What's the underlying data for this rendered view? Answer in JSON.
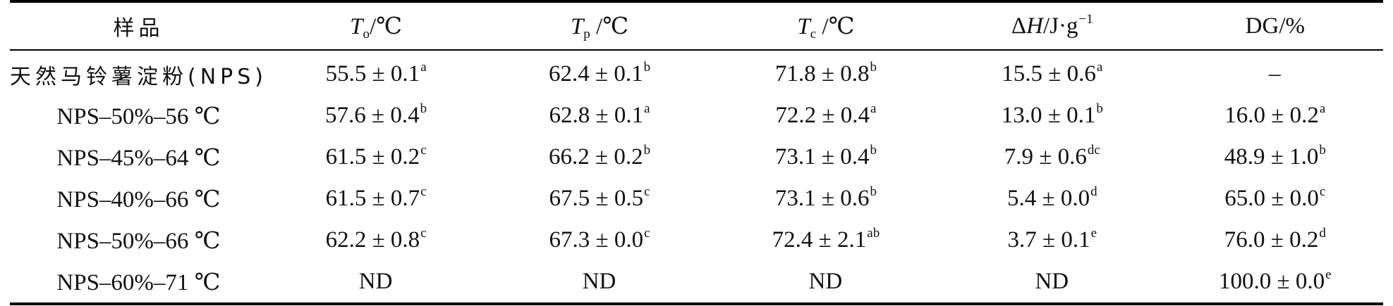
{
  "table": {
    "header": {
      "sample": "样品",
      "to": {
        "sym": "T",
        "sub": "o",
        "unit": "/℃"
      },
      "tp": {
        "sym": "T",
        "sub": "p",
        "unit": " /℃"
      },
      "tc": {
        "sym": "T",
        "sub": "c",
        "unit": " /℃"
      },
      "dh": {
        "delta": "Δ",
        "sym": "H",
        "unit": "/J·g",
        "exp": "−1"
      },
      "dg": "DG/%"
    },
    "rows": [
      {
        "sample": "天然马铃薯淀粉(NPS)",
        "to": {
          "v": "55.5 ± 0.1",
          "s": "a"
        },
        "tp": {
          "v": "62.4 ± 0.1",
          "s": "b"
        },
        "tc": {
          "v": "71.8 ± 0.8",
          "s": "b"
        },
        "dh": {
          "v": "15.5 ± 0.6",
          "s": "a"
        },
        "dg": {
          "v": "–",
          "s": ""
        }
      },
      {
        "sample": "NPS–50%–56 ℃",
        "to": {
          "v": "57.6 ± 0.4",
          "s": "b"
        },
        "tp": {
          "v": "62.8 ± 0.1",
          "s": "a"
        },
        "tc": {
          "v": "72.2 ± 0.4",
          "s": "a"
        },
        "dh": {
          "v": "13.0 ± 0.1",
          "s": "b"
        },
        "dg": {
          "v": "16.0 ± 0.2",
          "s": "a"
        }
      },
      {
        "sample": "NPS–45%–64 ℃",
        "to": {
          "v": "61.5 ± 0.2",
          "s": "c"
        },
        "tp": {
          "v": "66.2 ± 0.2",
          "s": "b"
        },
        "tc": {
          "v": "73.1 ± 0.4",
          "s": "b"
        },
        "dh": {
          "v": "7.9 ± 0.6",
          "s": "dc"
        },
        "dg": {
          "v": "48.9 ± 1.0",
          "s": "b"
        }
      },
      {
        "sample": "NPS–40%–66 ℃",
        "to": {
          "v": "61.5 ± 0.7",
          "s": "c"
        },
        "tp": {
          "v": "67.5 ± 0.5",
          "s": "c"
        },
        "tc": {
          "v": "73.1 ± 0.6",
          "s": "b"
        },
        "dh": {
          "v": "5.4 ± 0.0",
          "s": "d"
        },
        "dg": {
          "v": "65.0 ± 0.0",
          "s": "c"
        }
      },
      {
        "sample": "NPS–50%–66 ℃",
        "to": {
          "v": "62.2 ± 0.8",
          "s": "c"
        },
        "tp": {
          "v": "67.3 ± 0.0",
          "s": "c"
        },
        "tc": {
          "v": "72.4 ± 2.1",
          "s": "ab"
        },
        "dh": {
          "v": "3.7 ± 0.1",
          "s": "e"
        },
        "dg": {
          "v": "76.0 ± 0.2",
          "s": "d"
        }
      },
      {
        "sample": "NPS–60%–71 ℃",
        "to": {
          "v": "ND",
          "s": ""
        },
        "tp": {
          "v": "ND",
          "s": ""
        },
        "tc": {
          "v": "ND",
          "s": ""
        },
        "dh": {
          "v": "ND",
          "s": ""
        },
        "dg": {
          "v": "100.0 ± 0.0",
          "s": "e"
        }
      }
    ]
  }
}
